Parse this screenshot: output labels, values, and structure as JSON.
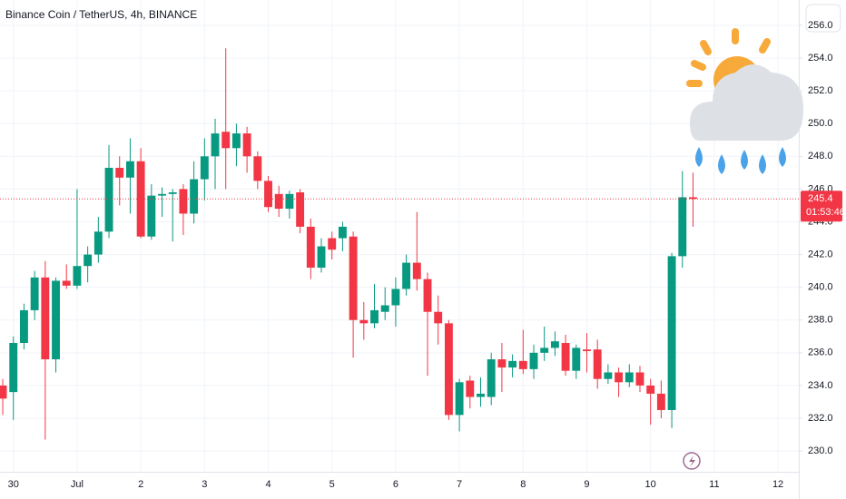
{
  "chart_data": {
    "type": "candlestick",
    "title": "Binance Coin / TetherUS, 4h, BINANCE",
    "open": [
      234.0,
      233.6,
      236.6,
      238.6,
      240.6,
      235.6,
      240.4,
      240.1,
      241.3,
      242.0,
      243.4,
      247.3,
      246.7,
      247.7,
      243.1,
      245.6,
      245.7,
      246.0,
      244.5,
      246.6,
      248.0,
      249.5,
      248.5,
      249.4,
      248.0,
      246.5,
      245.7,
      244.8,
      245.8,
      243.7,
      241.2,
      243.0,
      243.0,
      243.1,
      238.0,
      237.8,
      238.5,
      238.9,
      239.9,
      241.5,
      240.5,
      238.5,
      237.8,
      232.2,
      234.3,
      233.3,
      233.3,
      235.6,
      235.1,
      235.5,
      235.0,
      236.0,
      236.3,
      236.6,
      234.9,
      236.2,
      236.2,
      234.4,
      234.8,
      234.2,
      234.8,
      234.0,
      233.5,
      232.5,
      241.9,
      245.5
    ],
    "high": [
      234.4,
      237.0,
      239.0,
      241.0,
      241.6,
      240.6,
      241.4,
      246.0,
      242.5,
      244.3,
      248.7,
      248.0,
      249.1,
      248.5,
      246.3,
      246.1,
      246.0,
      246.3,
      247.7,
      249.1,
      250.3,
      254.6,
      250.0,
      249.8,
      248.3,
      246.8,
      246.2,
      245.9,
      246.0,
      244.2,
      243.0,
      243.4,
      244.0,
      243.4,
      239.1,
      240.2,
      240.0,
      240.6,
      242.0,
      244.6,
      240.9,
      239.5,
      238.0,
      234.4,
      234.6,
      234.5,
      236.0,
      236.6,
      235.9,
      237.4,
      236.5,
      237.6,
      237.3,
      237.1,
      236.5,
      237.2,
      236.8,
      235.3,
      235.1,
      235.3,
      235.2,
      234.4,
      234.3,
      242.1,
      247.1,
      247.0
    ],
    "low": [
      232.2,
      231.9,
      236.2,
      238.0,
      230.7,
      234.8,
      239.9,
      239.9,
      240.3,
      241.5,
      243.0,
      245.0,
      244.5,
      243.0,
      242.9,
      244.3,
      242.8,
      243.2,
      243.9,
      245.3,
      246.0,
      246.0,
      247.4,
      247.0,
      246.0,
      244.6,
      244.3,
      244.2,
      243.3,
      240.5,
      240.9,
      241.7,
      242.2,
      235.7,
      236.8,
      237.5,
      238.0,
      237.6,
      239.5,
      239.8,
      234.6,
      236.5,
      231.9,
      231.2,
      232.6,
      232.7,
      232.8,
      233.6,
      234.5,
      234.7,
      234.4,
      235.5,
      235.8,
      234.6,
      234.4,
      234.8,
      233.8,
      234.1,
      233.3,
      233.9,
      233.6,
      231.6,
      232.0,
      231.4,
      241.2,
      243.7
    ],
    "close": [
      233.2,
      236.6,
      238.6,
      240.6,
      235.6,
      240.4,
      240.1,
      241.3,
      242.0,
      243.4,
      247.3,
      246.7,
      247.7,
      243.1,
      245.6,
      245.7,
      245.8,
      244.5,
      246.6,
      248.0,
      249.4,
      248.5,
      249.4,
      248.0,
      246.5,
      244.9,
      244.8,
      245.7,
      243.7,
      241.2,
      242.5,
      242.3,
      243.7,
      238.0,
      237.8,
      238.6,
      238.9,
      239.9,
      241.5,
      240.5,
      238.5,
      237.8,
      232.2,
      234.2,
      233.3,
      233.5,
      235.6,
      235.1,
      235.5,
      235.0,
      236.0,
      236.3,
      236.7,
      234.9,
      236.3,
      236.1,
      234.4,
      234.8,
      234.2,
      234.8,
      234.0,
      233.5,
      232.5,
      241.9,
      245.5,
      245.4
    ],
    "up_color": "#089981",
    "down_color": "#f23645",
    "last_price": 245.4,
    "countdown": "01:53:46",
    "xlim": [
      -0.26,
      74.96
    ],
    "xticks": [
      {
        "value": 1,
        "label": "30"
      },
      {
        "value": 7,
        "label": "Jul"
      },
      {
        "value": 13,
        "label": "2"
      },
      {
        "value": 19,
        "label": "3"
      },
      {
        "value": 25,
        "label": "4"
      },
      {
        "value": 31,
        "label": "5"
      },
      {
        "value": 37,
        "label": "6"
      },
      {
        "value": 43,
        "label": "7"
      },
      {
        "value": 49,
        "label": "8"
      },
      {
        "value": 55,
        "label": "9"
      },
      {
        "value": 61,
        "label": "10"
      },
      {
        "value": 67,
        "label": "11"
      },
      {
        "value": 73,
        "label": "12"
      }
    ],
    "ylim": [
      228.73,
      257.55
    ],
    "yticks": [
      {
        "value": 230,
        "label": "230.0"
      },
      {
        "value": 232,
        "label": "232.0"
      },
      {
        "value": 234,
        "label": "234.0"
      },
      {
        "value": 236,
        "label": "236.0"
      },
      {
        "value": 238,
        "label": "238.0"
      },
      {
        "value": 240,
        "label": "240.0"
      },
      {
        "value": 242,
        "label": "242.0"
      },
      {
        "value": 244,
        "label": "244.0"
      },
      {
        "value": 246,
        "label": "246.0"
      },
      {
        "value": 248,
        "label": "248.0"
      },
      {
        "value": 250,
        "label": "250.0"
      },
      {
        "value": 252,
        "label": "252.0"
      },
      {
        "value": 254,
        "label": "254.0"
      },
      {
        "value": 256,
        "label": "256.0"
      }
    ],
    "grid": true
  }
}
